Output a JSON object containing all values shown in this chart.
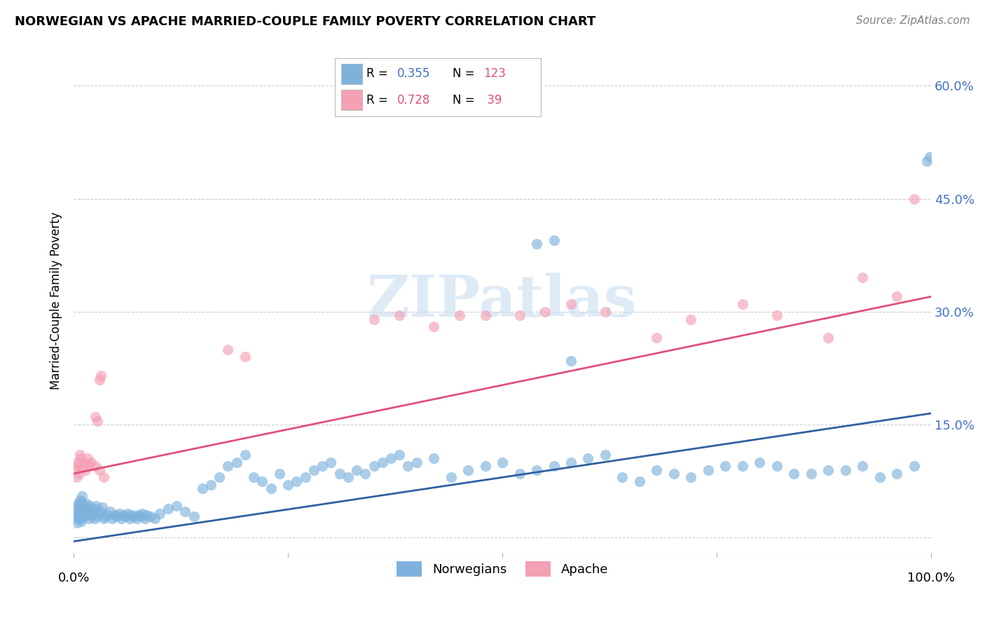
{
  "title": "NORWEGIAN VS APACHE MARRIED-COUPLE FAMILY POVERTY CORRELATION CHART",
  "source": "Source: ZipAtlas.com",
  "ylabel": "Married-Couple Family Poverty",
  "yticks": [
    0.0,
    0.15,
    0.3,
    0.45,
    0.6
  ],
  "ytick_labels": [
    "",
    "15.0%",
    "30.0%",
    "45.0%",
    "60.0%"
  ],
  "blue_color": "#7EB2DD",
  "pink_color": "#F4A0B5",
  "blue_line_color": "#3060A0",
  "pink_line_color": "#E0507A",
  "blue_text_color": "#4472C4",
  "pink_text_color": "#E05080",
  "watermark_color": "#C8DCF0",
  "watermark": "ZIPatlas",
  "norwegians_x": [
    0.002,
    0.003,
    0.003,
    0.004,
    0.004,
    0.005,
    0.005,
    0.006,
    0.006,
    0.007,
    0.007,
    0.008,
    0.008,
    0.009,
    0.009,
    0.01,
    0.01,
    0.011,
    0.012,
    0.013,
    0.014,
    0.015,
    0.016,
    0.017,
    0.018,
    0.019,
    0.02,
    0.022,
    0.024,
    0.025,
    0.026,
    0.028,
    0.03,
    0.032,
    0.033,
    0.035,
    0.037,
    0.04,
    0.042,
    0.045,
    0.048,
    0.05,
    0.053,
    0.055,
    0.058,
    0.06,
    0.063,
    0.065,
    0.068,
    0.07,
    0.073,
    0.075,
    0.078,
    0.08,
    0.083,
    0.085,
    0.09,
    0.095,
    0.1,
    0.11,
    0.12,
    0.13,
    0.14,
    0.15,
    0.16,
    0.17,
    0.18,
    0.19,
    0.2,
    0.21,
    0.22,
    0.23,
    0.24,
    0.25,
    0.26,
    0.27,
    0.28,
    0.29,
    0.3,
    0.31,
    0.32,
    0.33,
    0.34,
    0.35,
    0.36,
    0.37,
    0.38,
    0.39,
    0.4,
    0.42,
    0.44,
    0.46,
    0.48,
    0.5,
    0.52,
    0.54,
    0.56,
    0.58,
    0.6,
    0.62,
    0.64,
    0.66,
    0.68,
    0.7,
    0.72,
    0.74,
    0.76,
    0.78,
    0.8,
    0.82,
    0.84,
    0.86,
    0.88,
    0.9,
    0.92,
    0.94,
    0.96,
    0.98,
    0.995,
    0.998,
    0.54,
    0.56,
    0.58
  ],
  "norwegians_y": [
    0.03,
    0.025,
    0.04,
    0.02,
    0.035,
    0.028,
    0.045,
    0.032,
    0.038,
    0.042,
    0.05,
    0.025,
    0.033,
    0.048,
    0.022,
    0.03,
    0.055,
    0.038,
    0.035,
    0.028,
    0.04,
    0.045,
    0.032,
    0.038,
    0.025,
    0.042,
    0.03,
    0.035,
    0.025,
    0.038,
    0.042,
    0.028,
    0.032,
    0.035,
    0.04,
    0.025,
    0.028,
    0.03,
    0.035,
    0.025,
    0.03,
    0.028,
    0.032,
    0.025,
    0.03,
    0.028,
    0.032,
    0.025,
    0.03,
    0.028,
    0.025,
    0.03,
    0.028,
    0.032,
    0.025,
    0.03,
    0.028,
    0.025,
    0.032,
    0.038,
    0.042,
    0.035,
    0.028,
    0.065,
    0.07,
    0.08,
    0.095,
    0.1,
    0.11,
    0.08,
    0.075,
    0.065,
    0.085,
    0.07,
    0.075,
    0.08,
    0.09,
    0.095,
    0.1,
    0.085,
    0.08,
    0.09,
    0.085,
    0.095,
    0.1,
    0.105,
    0.11,
    0.095,
    0.1,
    0.105,
    0.08,
    0.09,
    0.095,
    0.1,
    0.085,
    0.09,
    0.095,
    0.1,
    0.105,
    0.11,
    0.08,
    0.075,
    0.09,
    0.085,
    0.08,
    0.09,
    0.095,
    0.095,
    0.1,
    0.095,
    0.085,
    0.085,
    0.09,
    0.09,
    0.095,
    0.08,
    0.085,
    0.095,
    0.5,
    0.505,
    0.39,
    0.395,
    0.235
  ],
  "apache_x": [
    0.002,
    0.003,
    0.004,
    0.005,
    0.006,
    0.007,
    0.008,
    0.01,
    0.012,
    0.014,
    0.016,
    0.018,
    0.02,
    0.025,
    0.03,
    0.035,
    0.025,
    0.028,
    0.03,
    0.032,
    0.18,
    0.2,
    0.35,
    0.38,
    0.42,
    0.45,
    0.48,
    0.52,
    0.55,
    0.58,
    0.62,
    0.68,
    0.72,
    0.78,
    0.82,
    0.88,
    0.92,
    0.96,
    0.98
  ],
  "apache_y": [
    0.09,
    0.08,
    0.1,
    0.095,
    0.085,
    0.11,
    0.105,
    0.095,
    0.1,
    0.09,
    0.105,
    0.095,
    0.1,
    0.095,
    0.09,
    0.08,
    0.16,
    0.155,
    0.21,
    0.215,
    0.25,
    0.24,
    0.29,
    0.295,
    0.28,
    0.295,
    0.295,
    0.295,
    0.3,
    0.31,
    0.3,
    0.265,
    0.29,
    0.31,
    0.295,
    0.265,
    0.345,
    0.32,
    0.45
  ],
  "blue_line_x": [
    0.0,
    1.0
  ],
  "blue_line_y": [
    -0.005,
    0.165
  ],
  "pink_line_x": [
    0.0,
    1.0
  ],
  "pink_line_y": [
    0.085,
    0.32
  ],
  "xlim": [
    0.0,
    1.0
  ],
  "ylim": [
    -0.02,
    0.65
  ]
}
